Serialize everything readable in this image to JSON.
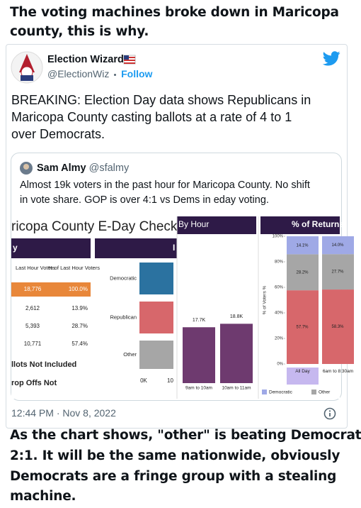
{
  "caption_top": [
    "The voting machines broke down in Maricopa",
    "county, this is why."
  ],
  "tweet": {
    "author": "Election Wizard",
    "handle": "@ElectionWiz",
    "follow": "Follow",
    "text": [
      "BREAKING: Election Day data shows Republicans in",
      "Maricopa County casting ballots at a rate of 4 to 1",
      "over Democrats."
    ],
    "timestamp": "12:44 PM · Nov 8, 2022"
  },
  "quoted_tweet": {
    "author": "Sam Almy",
    "handle": "@sfalmy",
    "text": [
      "Almost 19k voters in the past hour for Maricopa County. No shift",
      "in vote share. GOP is over 4:1 vs Dems in eday voting."
    ]
  },
  "dashboard": {
    "title": "ricopa County E-Day Check",
    "header_left": "y",
    "header_mid": "I",
    "hour_title": "By Hour",
    "returns_title": "% of Returns",
    "table": {
      "columns": [
        "Last Hour Voters",
        "% of Last Hour Voters"
      ],
      "rows": [
        [
          "18,776",
          "100.0%"
        ],
        [
          "2,612",
          "13.9%"
        ],
        [
          "5,393",
          "28.7%"
        ],
        [
          "10,771",
          "57.4%"
        ]
      ]
    },
    "notes": [
      "llots Not Included",
      "rop Offs Not"
    ],
    "party_bars": {
      "categories": [
        "Democratic",
        "Republican",
        "Other"
      ],
      "colors": [
        "#2b72a0",
        "#d7676b",
        "#a6a6a6"
      ],
      "tick_labels": [
        "0K",
        "10"
      ]
    },
    "hour_chart": {
      "type": "bar",
      "categories": [
        "9am to 10am",
        "10am to 11am"
      ],
      "values": [
        17700,
        18800
      ],
      "value_labels": [
        "17.7K",
        "18.8K"
      ],
      "color": "#6e3a6f"
    },
    "returns_chart": {
      "type": "stacked_bar",
      "ylabel": "% of Voters %",
      "categories": [
        "All Day",
        "6am to 8:30am"
      ],
      "ylim": [
        0,
        100
      ],
      "yticks": [
        {
          "value": 0,
          "label": "0%"
        },
        {
          "value": 20,
          "label": "20%"
        },
        {
          "value": 40,
          "label": "40%"
        },
        {
          "value": 60,
          "label": "60%"
        },
        {
          "value": 80,
          "label": "80%"
        },
        {
          "value": 100,
          "label": "100%"
        }
      ],
      "series": [
        {
          "color": "#d7676b",
          "values": [
            57.7,
            58.3
          ],
          "value_labels": [
            "57.7%",
            "58.3%"
          ]
        },
        {
          "name": "Other",
          "color": "#a6a6a6",
          "values": [
            28.2,
            27.7
          ],
          "value_labels": [
            "28.2%",
            "27.7%"
          ]
        },
        {
          "name": "Democratic",
          "color": "#9fa9e6",
          "values": [
            14.1,
            14.0
          ],
          "value_labels": [
            "14.1%",
            "14.0%"
          ]
        }
      ]
    }
  },
  "caption_bottom": [
    "As the chart shows, \"other\" is beating Democrat",
    "2:1. It will be the same nationwide, obviously",
    "Democrats are a fringe group with a stealing",
    "machine."
  ]
}
